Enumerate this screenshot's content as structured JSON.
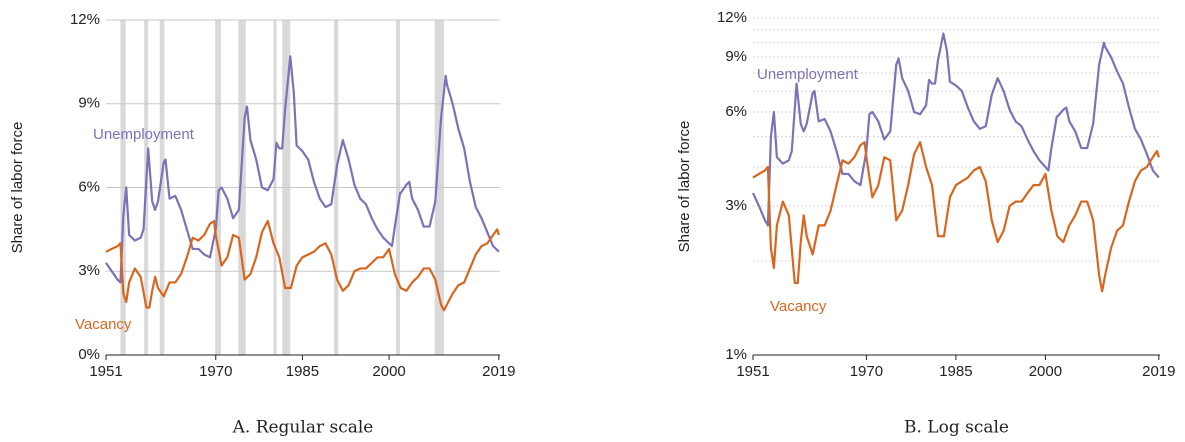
{
  "chart_data": [
    {
      "type": "line",
      "title": "A. Regular scale",
      "y_label": "Share of labor force",
      "log_scale": false,
      "grid": "solid",
      "xlim": [
        1951,
        2019.2
      ],
      "xticks": [
        1951,
        1970,
        1985,
        2000,
        2019
      ],
      "ylim": [
        0,
        12
      ],
      "yticks": [
        {
          "value": 0,
          "label": "0%"
        },
        {
          "value": 3,
          "label": "3%"
        },
        {
          "value": 6,
          "label": "6%"
        },
        {
          "value": 9,
          "label": "9%"
        },
        {
          "value": 12,
          "label": "12%"
        }
      ],
      "recessions": [
        [
          1953.5,
          1954.4
        ],
        [
          1957.6,
          1958.3
        ],
        [
          1960.3,
          1961.1
        ],
        [
          1969.9,
          1970.9
        ],
        [
          1973.9,
          1975.2
        ],
        [
          1980.0,
          1980.5
        ],
        [
          1981.5,
          1982.9
        ],
        [
          1990.5,
          1991.2
        ],
        [
          2001.2,
          2001.9
        ],
        [
          2007.9,
          2009.5
        ]
      ],
      "series": [
        {
          "name": "Unemployment",
          "color": "#7b72b8",
          "x": [
            1951,
            1952,
            1953,
            1953.5,
            1954,
            1954.5,
            1955,
            1956,
            1957,
            1957.5,
            1958.3,
            1959,
            1959.5,
            1960,
            1961,
            1961.3,
            1962,
            1963,
            1964,
            1965,
            1966,
            1967,
            1968,
            1969,
            1970,
            1970.5,
            1971,
            1972,
            1973,
            1974,
            1975,
            1975.4,
            1976,
            1977,
            1978,
            1979,
            1980,
            1980.5,
            1981,
            1981.5,
            1982,
            1982.9,
            1983.5,
            1984,
            1985,
            1986,
            1987,
            1988,
            1989,
            1990,
            1991,
            1992,
            1993,
            1994,
            1995,
            1996,
            1997,
            1998,
            1999,
            2000,
            2000.5,
            2001,
            2001.9,
            2002,
            2003,
            2003.5,
            2004,
            2005,
            2006,
            2007,
            2008,
            2009,
            2009.8,
            2010,
            2011,
            2012,
            2013,
            2014,
            2015,
            2016,
            2017,
            2018,
            2019
          ],
          "values": [
            3.3,
            3.0,
            2.7,
            2.6,
            5.0,
            6.0,
            4.3,
            4.1,
            4.2,
            4.5,
            7.4,
            5.5,
            5.2,
            5.5,
            6.9,
            7.0,
            5.6,
            5.7,
            5.2,
            4.5,
            3.8,
            3.8,
            3.6,
            3.5,
            4.5,
            5.9,
            6.0,
            5.6,
            4.9,
            5.2,
            8.5,
            8.9,
            7.7,
            7.0,
            6.0,
            5.9,
            6.3,
            7.6,
            7.4,
            7.4,
            8.8,
            10.7,
            9.4,
            7.5,
            7.3,
            7.0,
            6.2,
            5.6,
            5.3,
            5.4,
            6.8,
            7.7,
            7.0,
            6.1,
            5.6,
            5.4,
            4.9,
            4.5,
            4.2,
            4.0,
            3.9,
            4.6,
            5.8,
            5.8,
            6.1,
            6.2,
            5.6,
            5.2,
            4.6,
            4.6,
            5.5,
            8.5,
            10.0,
            9.7,
            9.0,
            8.1,
            7.4,
            6.2,
            5.3,
            4.9,
            4.4,
            3.9,
            3.7
          ]
        },
        {
          "name": "Vacancy",
          "color": "#d9661f",
          "x": [
            1951,
            1952,
            1953,
            1953.5,
            1954,
            1954.5,
            1955,
            1956,
            1957,
            1958,
            1958.5,
            1959,
            1959.5,
            1960,
            1961,
            1962,
            1963,
            1964,
            1965,
            1966,
            1967,
            1968,
            1969,
            1969.7,
            1970,
            1971,
            1972,
            1973,
            1974,
            1975,
            1976,
            1977,
            1978,
            1979,
            1980,
            1981,
            1982,
            1983,
            1984,
            1985,
            1986,
            1987,
            1988,
            1989,
            1990,
            1991,
            1992,
            1993,
            1994,
            1995,
            1996,
            1997,
            1998,
            1999,
            2000,
            2001,
            2002,
            2003,
            2004,
            2005,
            2006,
            2007,
            2008,
            2009,
            2009.5,
            2010,
            2011,
            2012,
            2013,
            2014,
            2015,
            2016,
            2017,
            2018,
            2018.7,
            2019
          ],
          "values": [
            3.7,
            3.8,
            3.9,
            4.0,
            2.2,
            1.9,
            2.6,
            3.1,
            2.8,
            1.7,
            1.7,
            2.3,
            2.8,
            2.4,
            2.1,
            2.6,
            2.6,
            2.9,
            3.5,
            4.2,
            4.1,
            4.3,
            4.7,
            4.8,
            4.3,
            3.2,
            3.5,
            4.3,
            4.2,
            2.7,
            2.9,
            3.5,
            4.4,
            4.8,
            4.0,
            3.5,
            2.4,
            2.4,
            3.2,
            3.5,
            3.6,
            3.7,
            3.9,
            4.0,
            3.6,
            2.7,
            2.3,
            2.5,
            3.0,
            3.1,
            3.1,
            3.3,
            3.5,
            3.5,
            3.8,
            2.9,
            2.4,
            2.3,
            2.6,
            2.8,
            3.1,
            3.1,
            2.7,
            1.8,
            1.6,
            1.8,
            2.2,
            2.5,
            2.6,
            3.1,
            3.6,
            3.9,
            4.0,
            4.3,
            4.5,
            4.3
          ]
        }
      ]
    },
    {
      "type": "line",
      "title": "B. Log scale",
      "y_label": "Share of labor force",
      "log_scale": true,
      "grid": "dotted",
      "xlim": [
        1951,
        2019.2
      ],
      "xticks": [
        1951,
        1970,
        1985,
        2000,
        2019
      ],
      "ylim": [
        1,
        12
      ],
      "yticks": [
        {
          "value": 1,
          "label": "1%"
        },
        {
          "value": 3,
          "label": "3%"
        },
        {
          "value": 6,
          "label": "6%"
        },
        {
          "value": 9,
          "label": "9%"
        },
        {
          "value": 12,
          "label": "12%"
        }
      ],
      "minor_yticks": [
        2,
        4,
        5,
        7,
        8,
        10,
        11
      ],
      "series": [
        {
          "name": "Unemployment",
          "color": "#7b72b8",
          "x": [
            1951,
            1952,
            1953,
            1953.5,
            1954,
            1954.5,
            1955,
            1956,
            1957,
            1957.5,
            1958.3,
            1959,
            1959.5,
            1960,
            1961,
            1961.3,
            1962,
            1963,
            1964,
            1965,
            1966,
            1967,
            1968,
            1969,
            1970,
            1970.5,
            1971,
            1972,
            1973,
            1974,
            1975,
            1975.4,
            1976,
            1977,
            1978,
            1979,
            1980,
            1980.5,
            1981,
            1981.5,
            1982,
            1982.9,
            1983.5,
            1984,
            1985,
            1986,
            1987,
            1988,
            1989,
            1990,
            1991,
            1992,
            1993,
            1994,
            1995,
            1996,
            1997,
            1998,
            1999,
            2000,
            2000.5,
            2001,
            2001.9,
            2002,
            2003,
            2003.5,
            2004,
            2005,
            2006,
            2007,
            2008,
            2009,
            2009.8,
            2010,
            2011,
            2012,
            2013,
            2014,
            2015,
            2016,
            2017,
            2018,
            2019
          ],
          "values": [
            3.3,
            3.0,
            2.7,
            2.6,
            5.0,
            6.0,
            4.3,
            4.1,
            4.2,
            4.5,
            7.4,
            5.5,
            5.2,
            5.5,
            6.9,
            7.0,
            5.6,
            5.7,
            5.2,
            4.5,
            3.8,
            3.8,
            3.6,
            3.5,
            4.5,
            5.9,
            6.0,
            5.6,
            4.9,
            5.2,
            8.5,
            8.9,
            7.7,
            7.0,
            6.0,
            5.9,
            6.3,
            7.6,
            7.4,
            7.4,
            8.8,
            10.7,
            9.4,
            7.5,
            7.3,
            7.0,
            6.2,
            5.6,
            5.3,
            5.4,
            6.8,
            7.7,
            7.0,
            6.1,
            5.6,
            5.4,
            4.9,
            4.5,
            4.2,
            4.0,
            3.9,
            4.6,
            5.8,
            5.8,
            6.1,
            6.2,
            5.6,
            5.2,
            4.6,
            4.6,
            5.5,
            8.5,
            10.0,
            9.7,
            9.0,
            8.1,
            7.4,
            6.2,
            5.3,
            4.9,
            4.4,
            3.9,
            3.7
          ]
        },
        {
          "name": "Vacancy",
          "color": "#d9661f",
          "x": [
            1951,
            1952,
            1953,
            1953.5,
            1954,
            1954.5,
            1955,
            1956,
            1957,
            1958,
            1958.5,
            1959,
            1959.5,
            1960,
            1961,
            1962,
            1963,
            1964,
            1965,
            1966,
            1967,
            1968,
            1969,
            1969.7,
            1970,
            1971,
            1972,
            1973,
            1974,
            1975,
            1976,
            1977,
            1978,
            1979,
            1980,
            1981,
            1982,
            1983,
            1984,
            1985,
            1986,
            1987,
            1988,
            1989,
            1990,
            1991,
            1992,
            1993,
            1994,
            1995,
            1996,
            1997,
            1998,
            1999,
            2000,
            2001,
            2002,
            2003,
            2004,
            2005,
            2006,
            2007,
            2008,
            2009,
            2009.5,
            2010,
            2011,
            2012,
            2013,
            2014,
            2015,
            2016,
            2017,
            2018,
            2018.7,
            2019
          ],
          "values": [
            3.7,
            3.8,
            3.9,
            4.0,
            2.2,
            1.9,
            2.6,
            3.1,
            2.8,
            1.7,
            1.7,
            2.3,
            2.8,
            2.4,
            2.1,
            2.6,
            2.6,
            2.9,
            3.5,
            4.2,
            4.1,
            4.3,
            4.7,
            4.8,
            4.3,
            3.2,
            3.5,
            4.3,
            4.2,
            2.7,
            2.9,
            3.5,
            4.4,
            4.8,
            4.0,
            3.5,
            2.4,
            2.4,
            3.2,
            3.5,
            3.6,
            3.7,
            3.9,
            4.0,
            3.6,
            2.7,
            2.3,
            2.5,
            3.0,
            3.1,
            3.1,
            3.3,
            3.5,
            3.5,
            3.8,
            2.9,
            2.4,
            2.3,
            2.6,
            2.8,
            3.1,
            3.1,
            2.7,
            1.8,
            1.6,
            1.8,
            2.2,
            2.5,
            2.6,
            3.1,
            3.6,
            3.9,
            4.0,
            4.3,
            4.5,
            4.3
          ]
        }
      ]
    }
  ]
}
